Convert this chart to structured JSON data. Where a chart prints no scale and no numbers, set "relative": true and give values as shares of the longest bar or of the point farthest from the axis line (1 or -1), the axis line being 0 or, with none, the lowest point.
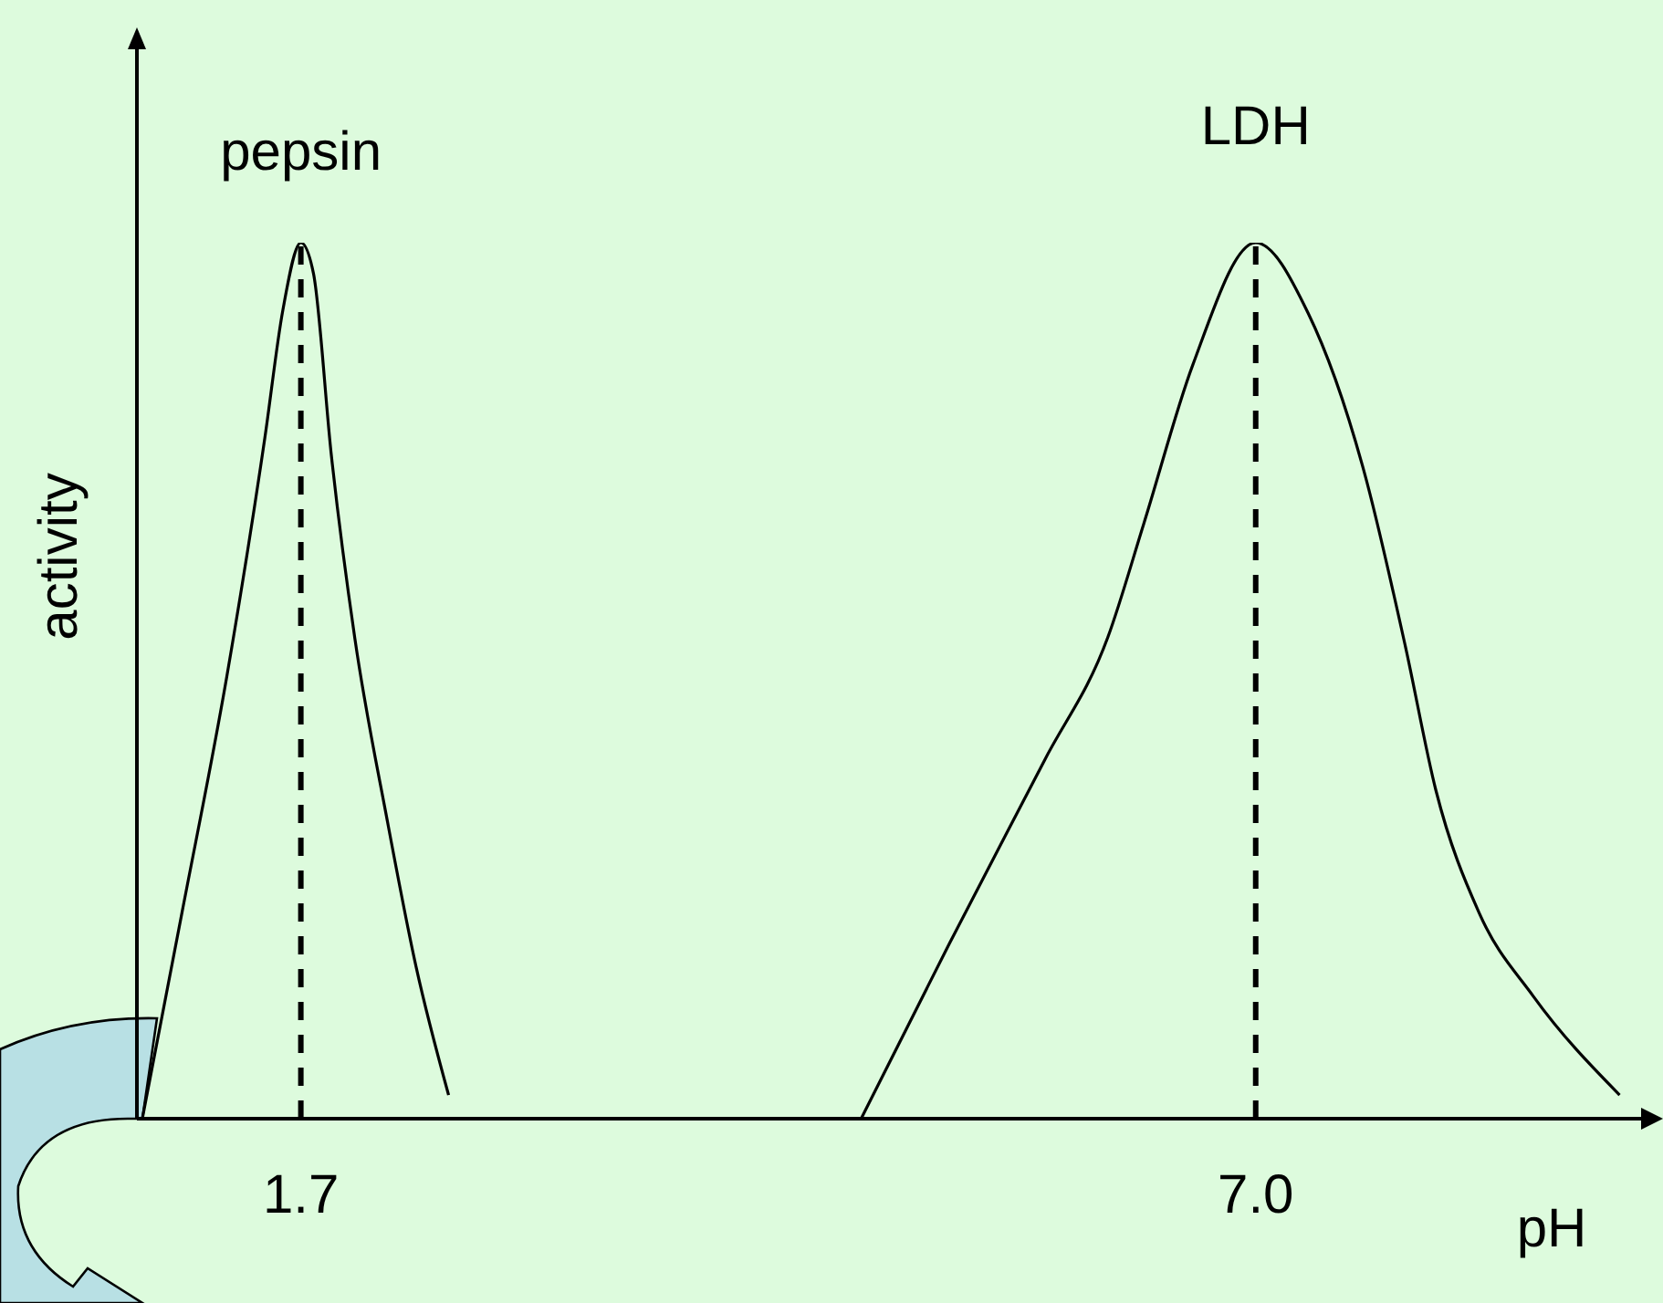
{
  "chart_data": {
    "type": "line",
    "relative": true,
    "xlabel": "pH",
    "ylabel": "activity",
    "xlim": [
      0.79,
      9.2
    ],
    "xticks": [
      {
        "value": 1.7,
        "label": "1.7"
      },
      {
        "value": 7.0,
        "label": "7.0"
      }
    ],
    "series": [
      {
        "name": "pepsin",
        "color": "#000000",
        "x": [
          0.82,
          1.04,
          1.29,
          1.5,
          1.6,
          1.7,
          1.77,
          1.87,
          2.0,
          2.18,
          2.34,
          2.52
        ],
        "values": [
          0,
          0.235,
          0.506,
          0.777,
          0.923,
          1,
          0.965,
          0.756,
          0.548,
          0.34,
          0.173,
          0.027
        ]
      },
      {
        "name": "LDH",
        "color": "#000000",
        "x": [
          4.81,
          5.3,
          5.83,
          6.18,
          6.38,
          6.65,
          7.0,
          7.29,
          7.6,
          7.83,
          8.0,
          8.24,
          8.54,
          9.02
        ],
        "values": [
          0,
          0.2,
          0.41,
          0.55,
          0.68,
          0.86,
          1,
          0.92,
          0.74,
          0.54,
          0.375,
          0.235,
          0.14,
          0.027
        ]
      }
    ],
    "ref_lines": [
      {
        "axis": "x",
        "value": 1.7,
        "color": "#000000",
        "line_style": "dashed"
      },
      {
        "axis": "x",
        "value": 7.0,
        "color": "#000000",
        "line_style": "dashed"
      }
    ]
  }
}
